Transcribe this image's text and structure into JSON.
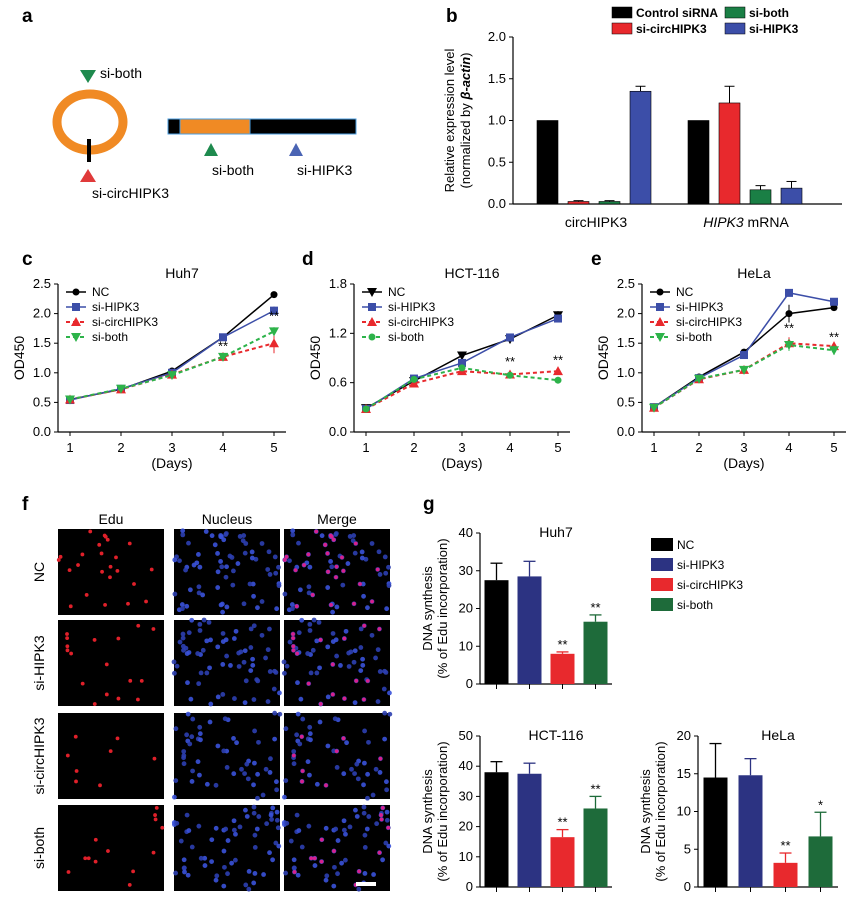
{
  "panel_labels": {
    "a": "a",
    "b": "b",
    "c": "c",
    "d": "d",
    "e": "e",
    "f": "f",
    "g": "g"
  },
  "schematic": {
    "si_both_top": "si-both",
    "si_circ": "si-circHIPK3",
    "si_both_bar": "si-both",
    "si_hipk3_bar": "si-HIPK3",
    "colors": {
      "ring": "#f08a24",
      "green": "#1e8a4e",
      "red": "#e03a3a",
      "blue": "#4a64b4"
    }
  },
  "growth_common": {
    "ylabel": "OD450",
    "xlabel": "(Days)"
  },
  "chart_data": [
    {
      "id": "b",
      "type": "bar",
      "title": "",
      "ylabel_line1": "Relative expression level",
      "ylabel_line2_pre": "(normalized by ",
      "ylabel_line2_it": "β-actin",
      "ylabel_line2_post": ")",
      "ylim": [
        0,
        2.0
      ],
      "yticks": [
        "0.0",
        "0.5",
        "1.0",
        "1.5",
        "2.0"
      ],
      "ytick_values": [
        0,
        0.5,
        1.0,
        1.5,
        2.0
      ],
      "groups": [
        {
          "label": "circHIPK3",
          "label_italic": "",
          "label_rest": ""
        },
        {
          "label": "",
          "label_italic": "HIPK3",
          "label_rest": " mRNA"
        }
      ],
      "series": [
        {
          "name": "Control siRNA",
          "color": "#000000",
          "values": [
            1.0,
            1.0
          ],
          "err": [
            0,
            0
          ]
        },
        {
          "name": "si-circHIPK3",
          "color": "#e8292d",
          "values": [
            0.03,
            1.21
          ],
          "err": [
            0.01,
            0.2
          ]
        },
        {
          "name": "si-both",
          "color": "#1a7f45",
          "values": [
            0.03,
            0.17
          ],
          "err": [
            0.01,
            0.05
          ]
        },
        {
          "name": "si-HIPK3",
          "color": "#3c4ea8",
          "values": [
            1.35,
            0.19
          ],
          "err": [
            0.06,
            0.08
          ]
        }
      ],
      "grid": false,
      "legend": "top"
    },
    {
      "id": "c",
      "type": "line",
      "title": "Huh7",
      "ylabel": "OD450",
      "xlabel": "(Days)",
      "x": [
        1,
        2,
        3,
        4,
        5
      ],
      "ylim": [
        0,
        2.5
      ],
      "yticks": [
        "0.0",
        "0.5",
        "1.0",
        "1.5",
        "2.0",
        "2.5"
      ],
      "ytick_values": [
        0,
        0.5,
        1.0,
        1.5,
        2.0,
        2.5
      ],
      "series": [
        {
          "name": "NC",
          "color": "#000000",
          "dash": false,
          "marker": "circle",
          "values": [
            0.55,
            0.72,
            1.03,
            1.6,
            2.32
          ],
          "err": [
            0.02,
            0.02,
            0.03,
            0.04,
            0.05
          ]
        },
        {
          "name": "si-HIPK3",
          "color": "#3c4ea8",
          "dash": false,
          "marker": "square",
          "values": [
            0.54,
            0.73,
            1.0,
            1.6,
            2.05
          ],
          "err": [
            0.02,
            0.02,
            0.03,
            0.04,
            0.07
          ]
        },
        {
          "name": "si-circHIPK3",
          "color": "#e8292d",
          "dash": true,
          "marker": "triangle-up",
          "values": [
            0.55,
            0.72,
            0.97,
            1.27,
            1.5
          ],
          "err": [
            0.02,
            0.02,
            0.03,
            0.05,
            0.17
          ]
        },
        {
          "name": "si-both",
          "color": "#2db34a",
          "dash": true,
          "marker": "triangle-down",
          "values": [
            0.55,
            0.73,
            0.96,
            1.27,
            1.7
          ],
          "err": [
            0.02,
            0.02,
            0.03,
            0.05,
            0.07
          ]
        }
      ],
      "annotations": [
        {
          "x": 4,
          "y": 1.38,
          "text": "**"
        },
        {
          "x": 5,
          "y": 1.88,
          "text": "**"
        }
      ],
      "legend": "top-left"
    },
    {
      "id": "d",
      "type": "line",
      "title": "HCT-116",
      "ylabel": "OD450",
      "xlabel": "(Days)",
      "x": [
        1,
        2,
        3,
        4,
        5
      ],
      "ylim": [
        0,
        1.8
      ],
      "yticks": [
        "0.0",
        "0.6",
        "1.2",
        "1.8"
      ],
      "ytick_values": [
        0,
        0.6,
        1.2,
        1.8
      ],
      "series": [
        {
          "name": "NC",
          "color": "#000000",
          "dash": false,
          "marker": "triangle-down",
          "values": [
            0.29,
            0.62,
            0.93,
            1.13,
            1.42
          ],
          "err": [
            0.01,
            0.02,
            0.03,
            0.03,
            0.05
          ]
        },
        {
          "name": "si-HIPK3",
          "color": "#3c4ea8",
          "dash": false,
          "marker": "square",
          "values": [
            0.28,
            0.65,
            0.84,
            1.15,
            1.38
          ],
          "err": [
            0.01,
            0.02,
            0.03,
            0.03,
            0.04
          ]
        },
        {
          "name": "si-circHIPK3",
          "color": "#e8292d",
          "dash": true,
          "marker": "triangle-up",
          "values": [
            0.28,
            0.59,
            0.74,
            0.7,
            0.74
          ],
          "err": [
            0.01,
            0.02,
            0.02,
            0.02,
            0.03
          ]
        },
        {
          "name": "si-both",
          "color": "#2db34a",
          "dash": true,
          "marker": "circle",
          "values": [
            0.28,
            0.64,
            0.78,
            0.69,
            0.63
          ],
          "err": [
            0.01,
            0.02,
            0.02,
            0.02,
            0.04
          ]
        }
      ],
      "annotations": [
        {
          "x": 4,
          "y": 0.8,
          "text": "**"
        },
        {
          "x": 5,
          "y": 0.82,
          "text": "**"
        }
      ],
      "legend": "top-left"
    },
    {
      "id": "e",
      "type": "line",
      "title": "HeLa",
      "ylabel": "OD450",
      "xlabel": "(Days)",
      "x": [
        1,
        2,
        3,
        4,
        5
      ],
      "ylim": [
        0,
        2.5
      ],
      "yticks": [
        "0.0",
        "0.5",
        "1.0",
        "1.5",
        "2.0",
        "2.5"
      ],
      "ytick_values": [
        0,
        0.5,
        1.0,
        1.5,
        2.0,
        2.5
      ],
      "series": [
        {
          "name": "NC",
          "color": "#000000",
          "dash": false,
          "marker": "circle",
          "values": [
            0.42,
            0.93,
            1.35,
            2.0,
            2.1
          ],
          "err": [
            0.02,
            0.03,
            0.05,
            0.15,
            0.03
          ]
        },
        {
          "name": "si-HIPK3",
          "color": "#3c4ea8",
          "dash": false,
          "marker": "square",
          "values": [
            0.42,
            0.91,
            1.3,
            2.35,
            2.2
          ],
          "err": [
            0.02,
            0.03,
            0.05,
            0.03,
            0.03
          ]
        },
        {
          "name": "si-circHIPK3",
          "color": "#e8292d",
          "dash": true,
          "marker": "triangle-up",
          "values": [
            0.41,
            0.89,
            1.05,
            1.5,
            1.45
          ],
          "err": [
            0.02,
            0.03,
            0.03,
            0.1,
            0.05
          ]
        },
        {
          "name": "si-both",
          "color": "#2db34a",
          "dash": true,
          "marker": "triangle-down",
          "values": [
            0.41,
            0.9,
            1.05,
            1.47,
            1.38
          ],
          "err": [
            0.02,
            0.03,
            0.03,
            0.1,
            0.08
          ]
        }
      ],
      "annotations": [
        {
          "x": 4,
          "y": 1.68,
          "text": "**"
        },
        {
          "x": 5,
          "y": 1.53,
          "text": "**"
        }
      ],
      "legend": "top-left"
    },
    {
      "id": "g1",
      "type": "bar",
      "title": "Huh7",
      "ylabel_line1": "DNA synthesis",
      "ylabel_line2": "(% of Edu incorporation)",
      "ylim": [
        0,
        40
      ],
      "yticks": [
        "0",
        "10",
        "20",
        "30",
        "40"
      ],
      "ytick_values": [
        0,
        10,
        20,
        30,
        40
      ],
      "categories": [
        "NC",
        "si-HIPK3",
        "si-circHIPK3",
        "si-both"
      ],
      "colors": [
        "#000000",
        "#2c3382",
        "#e8292d",
        "#1e6b3a"
      ],
      "values": [
        27.5,
        28.5,
        8.0,
        16.5
      ],
      "err": [
        4.5,
        4.0,
        0.5,
        1.8
      ],
      "stars": [
        "",
        "",
        "**",
        "**"
      ],
      "legend": "right"
    },
    {
      "id": "g2",
      "type": "bar",
      "title": "HCT-116",
      "ylabel_line1": "DNA synthesis",
      "ylabel_line2": "(% of Edu incorporation)",
      "ylim": [
        0,
        50
      ],
      "yticks": [
        "0",
        "10",
        "20",
        "30",
        "40",
        "50"
      ],
      "ytick_values": [
        0,
        10,
        20,
        30,
        40,
        50
      ],
      "categories": [
        "NC",
        "si-HIPK3",
        "si-circHIPK3",
        "si-both"
      ],
      "colors": [
        "#000000",
        "#2c3382",
        "#e8292d",
        "#1e6b3a"
      ],
      "values": [
        38,
        37.5,
        16.5,
        26
      ],
      "err": [
        3.5,
        3.5,
        2.5,
        4.0
      ],
      "stars": [
        "",
        "",
        "**",
        "**"
      ]
    },
    {
      "id": "g3",
      "type": "bar",
      "title": "HeLa",
      "ylabel_line1": "DNA synthesis",
      "ylabel_line2": "(% of Edu incorporation)",
      "ylim": [
        0,
        20
      ],
      "yticks": [
        "0",
        "5",
        "10",
        "15",
        "20"
      ],
      "ytick_values": [
        0,
        5,
        10,
        15,
        20
      ],
      "categories": [
        "NC",
        "si-HIPK3",
        "si-circHIPK3",
        "si-both"
      ],
      "colors": [
        "#000000",
        "#2c3382",
        "#e8292d",
        "#1e6b3a"
      ],
      "values": [
        14.5,
        14.8,
        3.2,
        6.7
      ],
      "err": [
        4.5,
        2.2,
        1.3,
        3.2
      ],
      "stars": [
        "",
        "",
        "**",
        "*"
      ]
    }
  ],
  "microscopy": {
    "columns": [
      "Edu",
      "Nucleus",
      "Merge"
    ],
    "rows": [
      "NC",
      "si-HIPK3",
      "si-circHIPK3",
      "si-both"
    ],
    "densities": [
      1.0,
      0.9,
      0.4,
      0.7
    ]
  },
  "g_legend": [
    {
      "name": "NC",
      "color": "#000000"
    },
    {
      "name": "si-HIPK3",
      "color": "#2c3382"
    },
    {
      "name": "si-circHIPK3",
      "color": "#e8292d"
    },
    {
      "name": "si-both",
      "color": "#1e6b3a"
    }
  ]
}
